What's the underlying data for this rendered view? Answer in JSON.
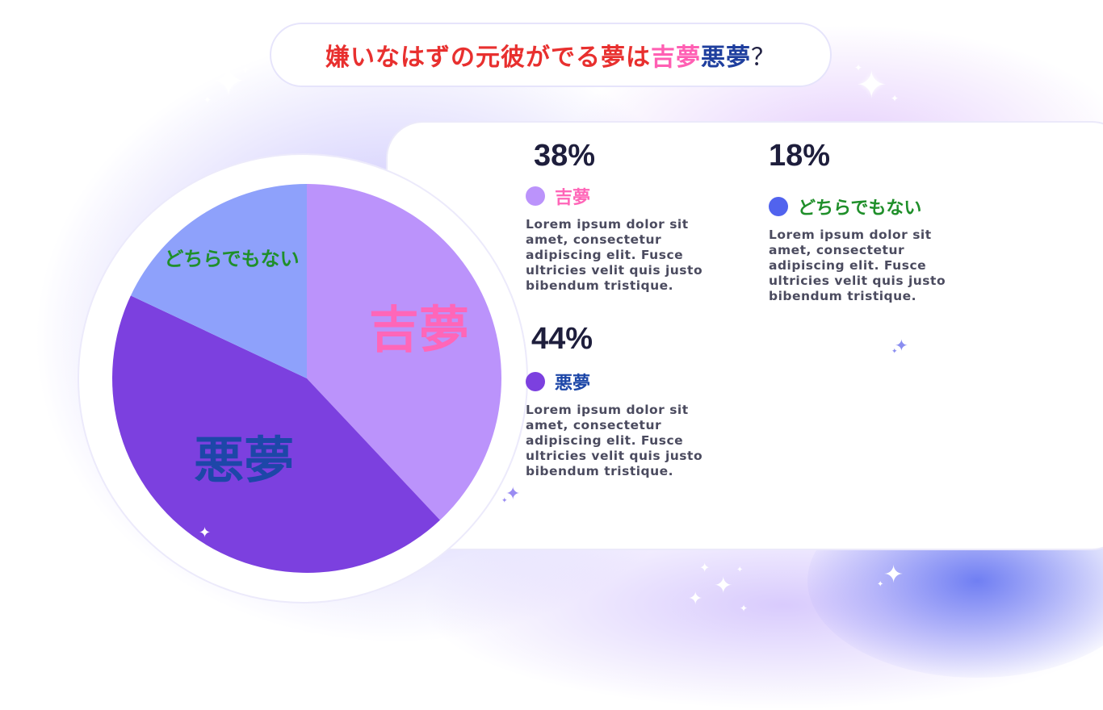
{
  "title": {
    "part_main": "嫌いなはずの元彼がでる夢は",
    "part_good": "吉夢",
    "part_bad": "悪夢",
    "part_q": "？"
  },
  "colors": {
    "good": "#bb93fb",
    "bad": "#7c40df",
    "neither": "#8ea1fb",
    "good_text": "#ff66b8",
    "bad_text": "#1d47a8",
    "neither_text": "#1f8f2a"
  },
  "chart_data": {
    "type": "pie",
    "categories": [
      "吉夢",
      "悪夢",
      "どちらでもない"
    ],
    "values": [
      38,
      44,
      18
    ],
    "unit": "%",
    "slice_labels": [
      "吉夢",
      "悪夢",
      "どちらでもない"
    ]
  },
  "legend": [
    {
      "percent": "38%",
      "label": "吉夢",
      "description": "Lorem ipsum dolor sit amet, consectetur adipiscing elit. Fusce ultricies velit quis justo bibendum tristique."
    },
    {
      "percent": "44%",
      "label": "悪夢",
      "description": "Lorem ipsum dolor sit amet, consectetur adipiscing elit. Fusce ultricies velit quis justo bibendum tristique."
    },
    {
      "percent": "18%",
      "label": "どちらでもない",
      "description": "Lorem ipsum dolor sit amet, consectetur adipiscing elit. Fusce ultricies velit quis justo bibendum tristique."
    }
  ]
}
